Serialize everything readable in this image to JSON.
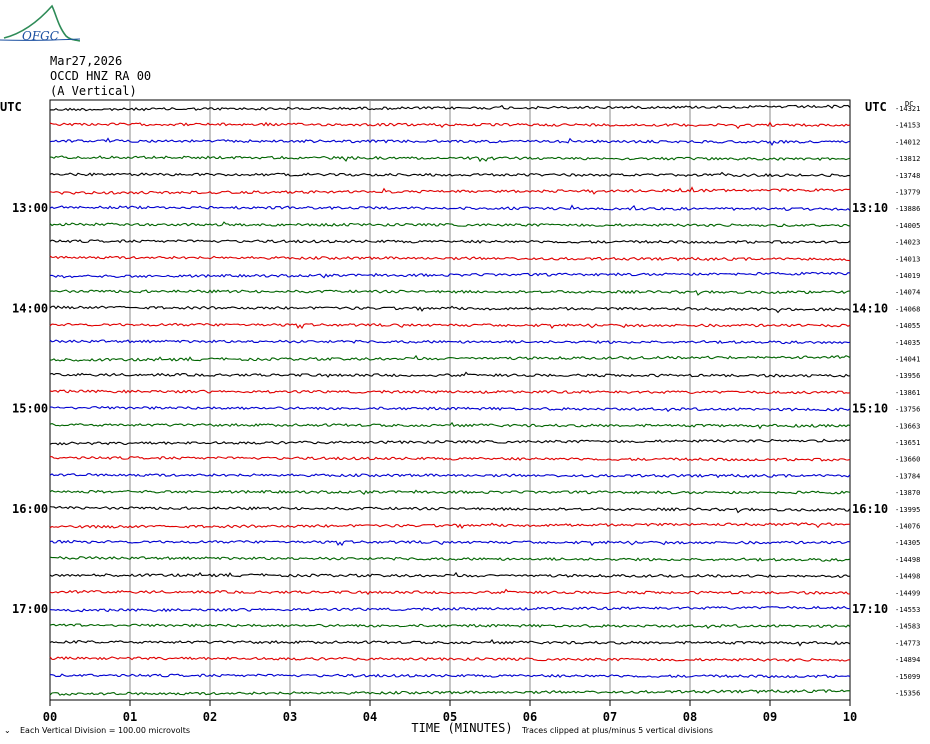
{
  "header": {
    "logo_text": "OFGC",
    "date": "Mar27,2026",
    "station": "OCCD HNZ RA 00",
    "component": "(A Vertical)"
  },
  "footer": {
    "scale_note": "Each Vertical Division =  100.00 microvolts",
    "clip_note": "Traces clipped at plus/minus 5 vertical divisions"
  },
  "chart_data": {
    "type": "line",
    "title": "",
    "xlabel": "TIME (MINUTES)",
    "left_axis_label": "UTC",
    "right_axis_label": "UTC",
    "right_top_corner": "DC",
    "x_ticks": [
      "00",
      "01",
      "02",
      "03",
      "04",
      "05",
      "06",
      "07",
      "08",
      "09",
      "10"
    ],
    "xlim": [
      0,
      10
    ],
    "trace_colors": [
      "#000000",
      "#e00000",
      "#0000d0",
      "#006400"
    ],
    "left_hour_labels": [
      {
        "row": 6,
        "label": "13:00"
      },
      {
        "row": 12,
        "label": "14:00"
      },
      {
        "row": 18,
        "label": "15:00"
      },
      {
        "row": 24,
        "label": "16:00"
      },
      {
        "row": 30,
        "label": "17:00"
      }
    ],
    "right_time_labels": [
      {
        "row": 6,
        "label": "13:10"
      },
      {
        "row": 12,
        "label": "14:10"
      },
      {
        "row": 18,
        "label": "15:10"
      },
      {
        "row": 24,
        "label": "16:10"
      },
      {
        "row": 30,
        "label": "17:10"
      }
    ],
    "dc_offsets": [
      -14321,
      -14153,
      -14012,
      -13812,
      -13748,
      -13779,
      -13886,
      -14005,
      -14023,
      -14013,
      -14019,
      -14074,
      -14068,
      -14055,
      -14035,
      -14041,
      -13956,
      -13861,
      -13756,
      -13663,
      -13651,
      -13660,
      -13784,
      -13870,
      -13995,
      -14076,
      -14305,
      -14498,
      -14498,
      -14499,
      -14553,
      -14583,
      -14773,
      -14894,
      -15099,
      -15356
    ],
    "grid": true
  }
}
